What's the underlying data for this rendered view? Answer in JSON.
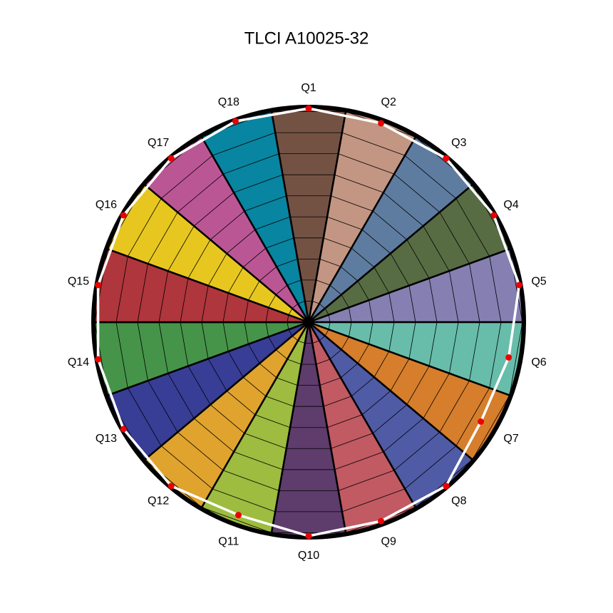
{
  "chart_data": {
    "type": "radar",
    "title": "TLCI A10025-32",
    "categories": [
      "Q1",
      "Q2",
      "Q3",
      "Q4",
      "Q5",
      "Q6",
      "Q7",
      "Q8",
      "Q9",
      "Q10",
      "Q11",
      "Q12",
      "Q13",
      "Q14",
      "Q15",
      "Q16",
      "Q17",
      "Q18"
    ],
    "values": [
      100,
      99,
      100,
      100,
      100,
      95,
      93,
      100,
      99,
      100,
      96,
      100,
      100,
      100,
      100,
      100,
      100,
      100
    ],
    "sector_colors": [
      "#735244",
      "#c29682",
      "#5e7ca0",
      "#576c43",
      "#8580b1",
      "#67bdaa",
      "#d67e2c",
      "#505ba6",
      "#c15a63",
      "#5e3c6c",
      "#9dbc40",
      "#e0a32e",
      "#383d96",
      "#469449",
      "#af363c",
      "#e7c71f",
      "#bb5695",
      "#0885a1"
    ],
    "line_color": "#ffffff",
    "marker_color": "#ee0000",
    "rlim": [
      0,
      100
    ],
    "rticks": [
      10,
      20,
      30,
      40,
      50,
      60,
      70,
      80,
      90,
      100
    ],
    "grid": true
  }
}
